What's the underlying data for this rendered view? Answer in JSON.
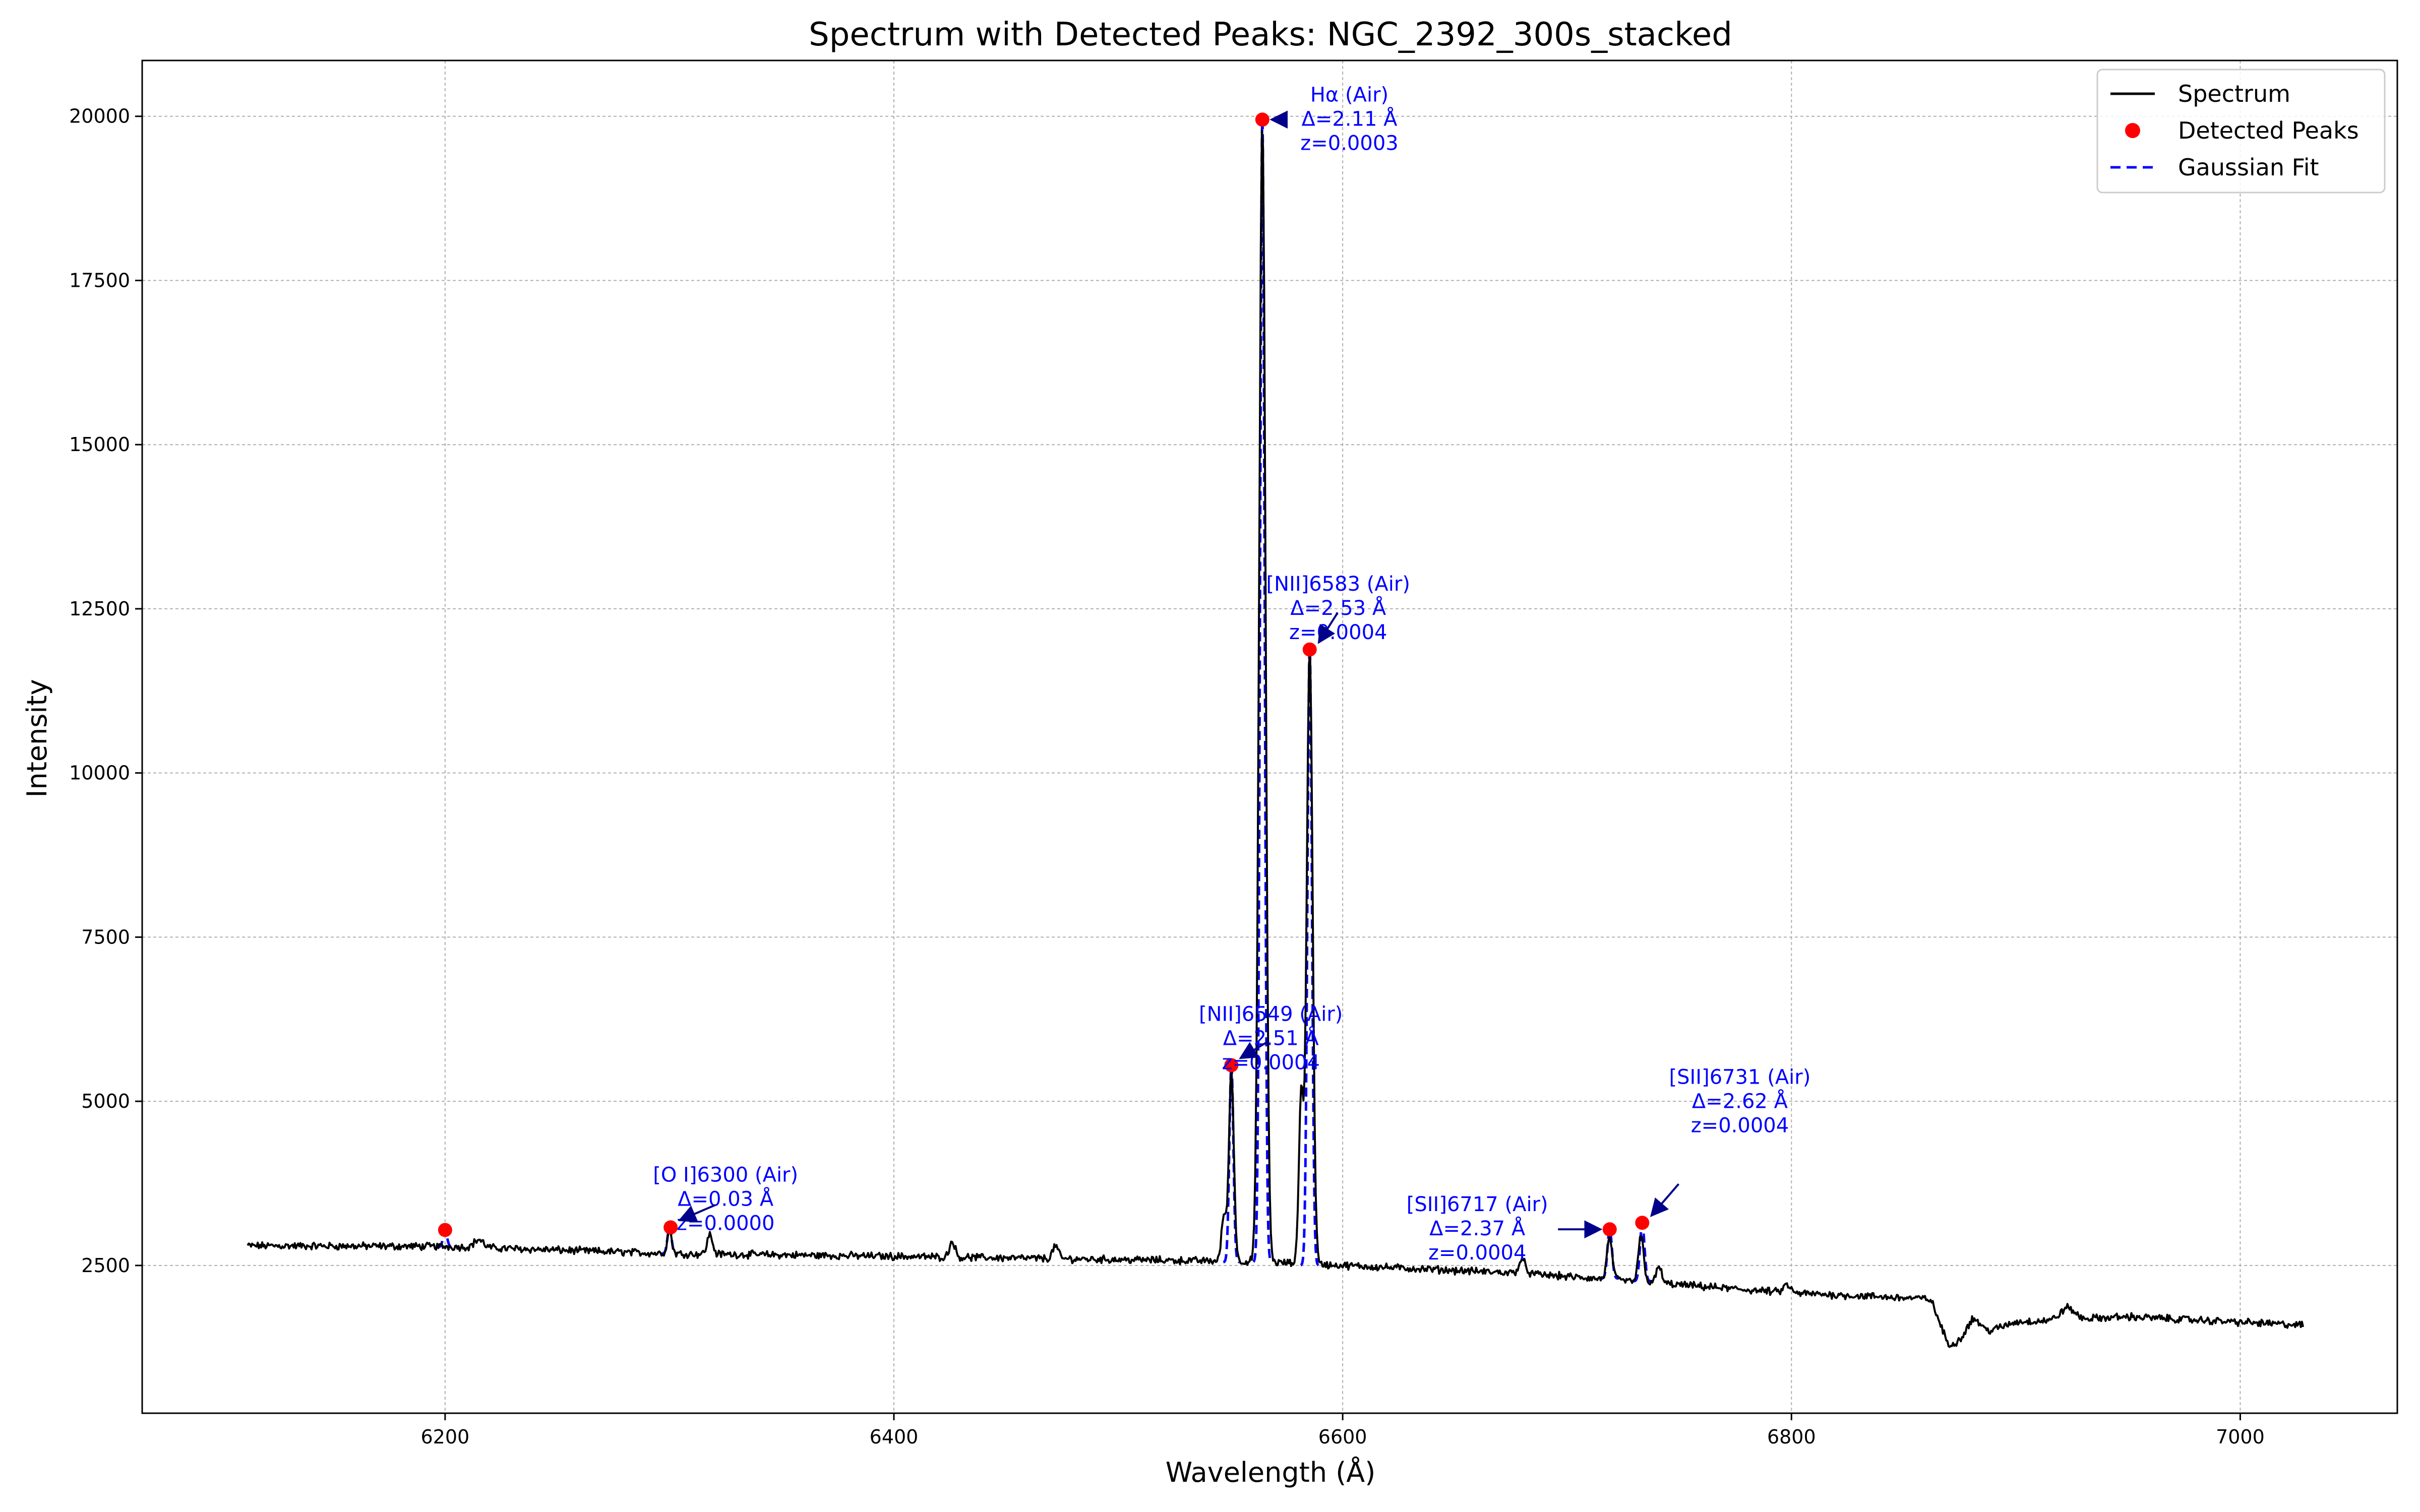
{
  "chart_data": {
    "type": "line",
    "title": "Spectrum with Detected Peaks: NGC_2392_300s_stacked",
    "xlabel": "Wavelength (Å)",
    "ylabel": "Intensity",
    "xlim": [
      6065,
      7070
    ],
    "ylim": [
      250,
      20850
    ],
    "xticks": [
      6200,
      6400,
      6600,
      6800,
      7000
    ],
    "yticks": [
      2500,
      5000,
      7500,
      10000,
      12500,
      15000,
      17500,
      20000
    ],
    "grid": true,
    "legend_position": "top-right",
    "legend": [
      {
        "label": "Spectrum",
        "color": "#000000",
        "style": "line"
      },
      {
        "label": "Detected Peaks",
        "color": "#ff0000",
        "style": "marker"
      },
      {
        "label": "Gaussian Fit",
        "color": "#0000ff",
        "style": "dashed"
      }
    ],
    "spectrum": {
      "x_range": [
        6112,
        7028
      ],
      "continuum": [
        [
          6112,
          2800
        ],
        [
          6200,
          2790
        ],
        [
          6300,
          2680
        ],
        [
          6400,
          2640
        ],
        [
          6500,
          2590
        ],
        [
          6560,
          2560
        ],
        [
          6600,
          2500
        ],
        [
          6680,
          2380
        ],
        [
          6740,
          2230
        ],
        [
          6800,
          2080
        ],
        [
          6862,
          1990
        ],
        [
          6870,
          1280
        ],
        [
          6900,
          1640
        ],
        [
          6950,
          1720
        ],
        [
          7028,
          1590
        ]
      ],
      "noise": 45,
      "features": [
        {
          "center": 6564.2,
          "amplitude": 17400,
          "sigma": 1.4
        },
        {
          "center": 6585.3,
          "amplitude": 9400,
          "sigma": 1.3
        },
        {
          "center": 6550.4,
          "amplitude": 2900,
          "sigma": 1.1
        },
        {
          "center": 6300,
          "amplitude": 350,
          "sigma": 1.0
        },
        {
          "center": 6719,
          "amplitude": 620,
          "sigma": 1.2
        },
        {
          "center": 6733,
          "amplitude": 700,
          "sigma": 1.2
        },
        {
          "center": 6547,
          "amplitude": 700,
          "sigma": 1.0
        },
        {
          "center": 6581.5,
          "amplitude": 2600,
          "sigma": 1.0
        },
        {
          "center": 6318,
          "amplitude": 300,
          "sigma": 1.2
        },
        {
          "center": 6426,
          "amplitude": 250,
          "sigma": 1.2
        },
        {
          "center": 6472,
          "amplitude": 200,
          "sigma": 1.2
        },
        {
          "center": 6680,
          "amplitude": 200,
          "sigma": 1.5
        },
        {
          "center": 6741,
          "amplitude": 250,
          "sigma": 1.2
        },
        {
          "center": 6881,
          "amplitude": 270,
          "sigma": 3.0
        },
        {
          "center": 6923,
          "amplitude": 180,
          "sigma": 3.0
        },
        {
          "center": 6798,
          "amplitude": 120,
          "sigma": 1.5
        },
        {
          "center": 6215,
          "amplitude": 120,
          "sigma": 2.0
        }
      ]
    },
    "gaussian_fits": [
      {
        "center": 6200,
        "amplitude": 250,
        "sigma": 0.9,
        "base": 2780
      },
      {
        "center": 6300,
        "amplitude": 400,
        "sigma": 0.9,
        "base": 2680
      },
      {
        "center": 6550.4,
        "amplitude": 3000,
        "sigma": 0.9,
        "base": 2550
      },
      {
        "center": 6564.2,
        "amplitude": 17400,
        "sigma": 1.0,
        "base": 2550
      },
      {
        "center": 6585.3,
        "amplitude": 9400,
        "sigma": 1.0,
        "base": 2500
      },
      {
        "center": 6719,
        "amplitude": 750,
        "sigma": 1.0,
        "base": 2300
      },
      {
        "center": 6733.5,
        "amplitude": 880,
        "sigma": 1.0,
        "base": 2260
      }
    ],
    "detected_peaks": [
      {
        "x": 6200,
        "y": 3040
      },
      {
        "x": 6300.5,
        "y": 3080
      },
      {
        "x": 6550.4,
        "y": 5550
      },
      {
        "x": 6564.2,
        "y": 19950
      },
      {
        "x": 6585.3,
        "y": 11880
      },
      {
        "x": 6719,
        "y": 3050
      },
      {
        "x": 6733.5,
        "y": 3150
      }
    ],
    "annotations": [
      {
        "lines": [
          "Hα (Air)",
          "Δ=2.11 Å",
          "z=0.0003"
        ],
        "text_x": 6603,
        "text_y": 19950,
        "peak_x": 6564.2,
        "peak_y": 19950
      },
      {
        "lines": [
          "[NII]6583 (Air)",
          "Δ=2.53 Å",
          "z=0.0004"
        ],
        "text_x": 6598,
        "text_y": 12500,
        "peak_x": 6585.3,
        "peak_y": 11880
      },
      {
        "lines": [
          "[NII]6549 (Air)",
          "Δ=2.51 Å",
          "z=0.0004"
        ],
        "text_x": 6568,
        "text_y": 5950,
        "peak_x": 6550.4,
        "peak_y": 5550
      },
      {
        "lines": [
          "[O I]6300 (Air)",
          "Δ=0.03 Å",
          "z=0.0000"
        ],
        "text_x": 6325,
        "text_y": 3500,
        "peak_x": 6300.5,
        "peak_y": 3080
      },
      {
        "lines": [
          "[SII]6717 (Air)",
          "Δ=2.37 Å",
          "z=0.0004"
        ],
        "text_x": 6660,
        "text_y": 3050,
        "peak_x": 6719,
        "peak_y": 3050
      },
      {
        "lines": [
          "[SII]6731 (Air)",
          "Δ=2.62 Å",
          "z=0.0004"
        ],
        "text_x": 6777,
        "text_y": 4990,
        "peak_x": 6733.5,
        "peak_y": 3150
      }
    ]
  }
}
